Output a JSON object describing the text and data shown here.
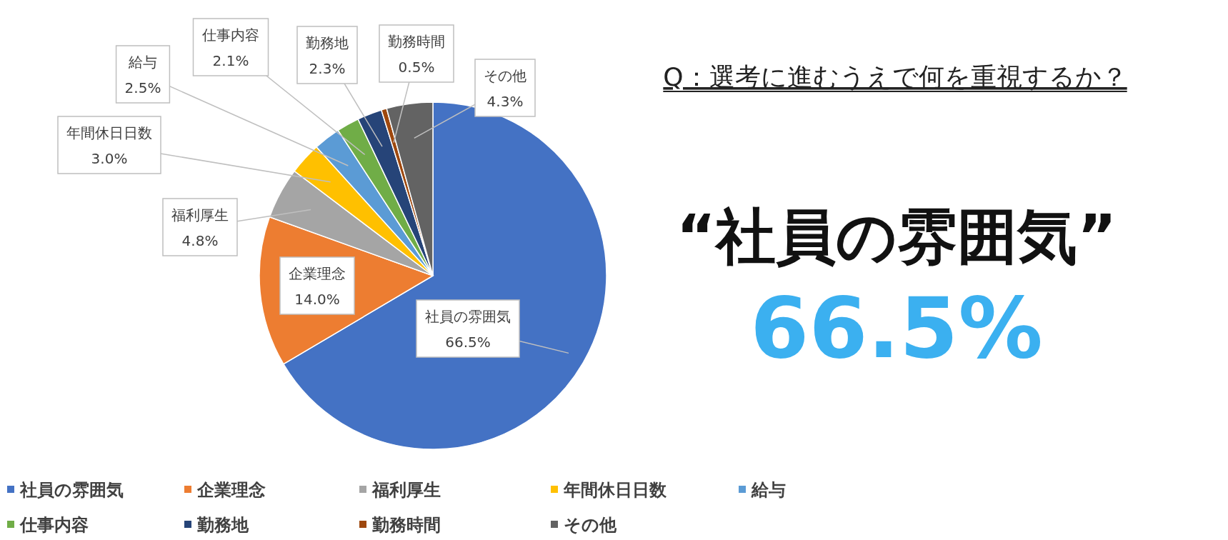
{
  "chart_data": {
    "type": "pie",
    "title": "Q：選考に進むうえで何を重視するか？",
    "categories": [
      "社員の雰囲気",
      "企業理念",
      "福利厚生",
      "年間休日日数",
      "給与",
      "仕事内容",
      "勤務地",
      "勤務時間",
      "その他"
    ],
    "values": [
      66.5,
      14.0,
      4.8,
      3.0,
      2.5,
      2.1,
      2.3,
      0.5,
      4.3
    ],
    "value_labels": [
      "66.5%",
      "14.0%",
      "4.8%",
      "3.0%",
      "2.5%",
      "2.1%",
      "2.3%",
      "0.5%",
      "4.3%"
    ],
    "colors": [
      "#4472c4",
      "#ed7d31",
      "#a5a5a5",
      "#ffc000",
      "#5b9bd5",
      "#70ad47",
      "#264478",
      "#9e480e",
      "#636363"
    ],
    "annotations": [
      "“社員の雰囲気”",
      "66.5%"
    ],
    "legend": "bottom left"
  }
}
